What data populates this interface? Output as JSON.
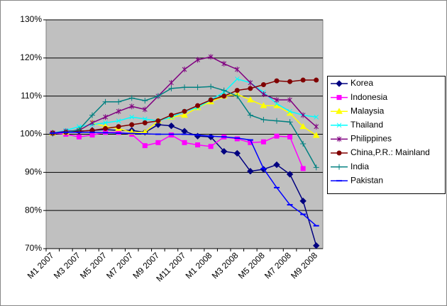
{
  "chart_data": {
    "type": "line",
    "categories": [
      "M1 2007",
      null,
      "M3 2007",
      null,
      "M5 2007",
      null,
      "M7 2007",
      null,
      "M9 2007",
      null,
      "M11 2007",
      null,
      "M1 2008",
      null,
      "M3 2008",
      null,
      "M5 2008",
      null,
      "M7 2008",
      null,
      "M9 2008"
    ],
    "ylim": [
      70,
      130
    ],
    "yticks": [
      {
        "value": 70,
        "label": "70%"
      },
      {
        "value": 80,
        "label": "80%"
      },
      {
        "value": 90,
        "label": "90%"
      },
      {
        "value": 100,
        "label": "100%"
      },
      {
        "value": 110,
        "label": "110%"
      },
      {
        "value": 120,
        "label": "120%"
      },
      {
        "value": 130,
        "label": "130%"
      }
    ],
    "grid": true,
    "legend": "right",
    "series": [
      {
        "name": "Korea",
        "color": "#000080",
        "marker": "diamond",
        "values": [
          100.3,
          100.5,
          100.8,
          101,
          101.2,
          101,
          101,
          100.5,
          102.5,
          102.2,
          100.8,
          99.5,
          99.3,
          95.5,
          95,
          90.3,
          90.8,
          92,
          89.5,
          82.5,
          70.8
        ]
      },
      {
        "name": "Indonesia",
        "color": "#ff00ff",
        "marker": "square",
        "values": [
          100.3,
          100,
          99.3,
          99.8,
          100.5,
          100.5,
          100,
          97,
          97.8,
          99.8,
          97.8,
          97.2,
          96.8,
          99.3,
          98.8,
          97.8,
          98,
          99.5,
          99.3,
          91,
          null
        ]
      },
      {
        "name": "Malaysia",
        "color": "#ffff00",
        "marker": "triangle",
        "values": [
          100.3,
          100.5,
          101,
          103,
          102,
          101.5,
          100.5,
          100.5,
          103.5,
          104.5,
          105,
          107,
          108.5,
          110,
          110.5,
          109,
          107.5,
          107.5,
          105.5,
          102,
          99.7
        ]
      },
      {
        "name": "Thailand",
        "color": "#00ffff",
        "marker": "x",
        "values": [
          100.3,
          101,
          102,
          102.5,
          103,
          103.5,
          104.5,
          104,
          103.5,
          104.5,
          106,
          107,
          109,
          111,
          114.5,
          113.5,
          111,
          108,
          106,
          105,
          104.5
        ]
      },
      {
        "name": "Philippines",
        "color": "#800080",
        "marker": "star",
        "values": [
          100.3,
          100.8,
          101,
          103,
          104.5,
          106,
          107.3,
          106.5,
          110,
          113.5,
          117,
          119.5,
          120.3,
          118.5,
          117,
          113.5,
          110.5,
          109,
          109,
          105,
          102
        ]
      },
      {
        "name": "China,P.R.: Mainland",
        "color": "#800000",
        "marker": "circle",
        "values": [
          100.3,
          100.5,
          100.8,
          101,
          101.5,
          102,
          102.5,
          103,
          103.5,
          105,
          106,
          107.5,
          109,
          110,
          111.5,
          112,
          113,
          114,
          113.8,
          114.2,
          114.2
        ]
      },
      {
        "name": "India",
        "color": "#008080",
        "marker": "plus",
        "values": [
          100.3,
          100.5,
          101.2,
          105,
          108.5,
          108.5,
          109.5,
          108.8,
          110,
          112,
          112.3,
          112.3,
          112.5,
          111.5,
          110,
          105,
          103.8,
          103.5,
          103.2,
          97.5,
          91.3
        ]
      },
      {
        "name": "Pakistan",
        "color": "#0000ff",
        "marker": "dash",
        "values": [
          100.3,
          100.5,
          100.5,
          100.5,
          100.4,
          100.3,
          100.2,
          100.1,
          100,
          100,
          100,
          99.8,
          99.5,
          99.3,
          99,
          98.5,
          91,
          86,
          81.5,
          79,
          76
        ]
      }
    ]
  }
}
